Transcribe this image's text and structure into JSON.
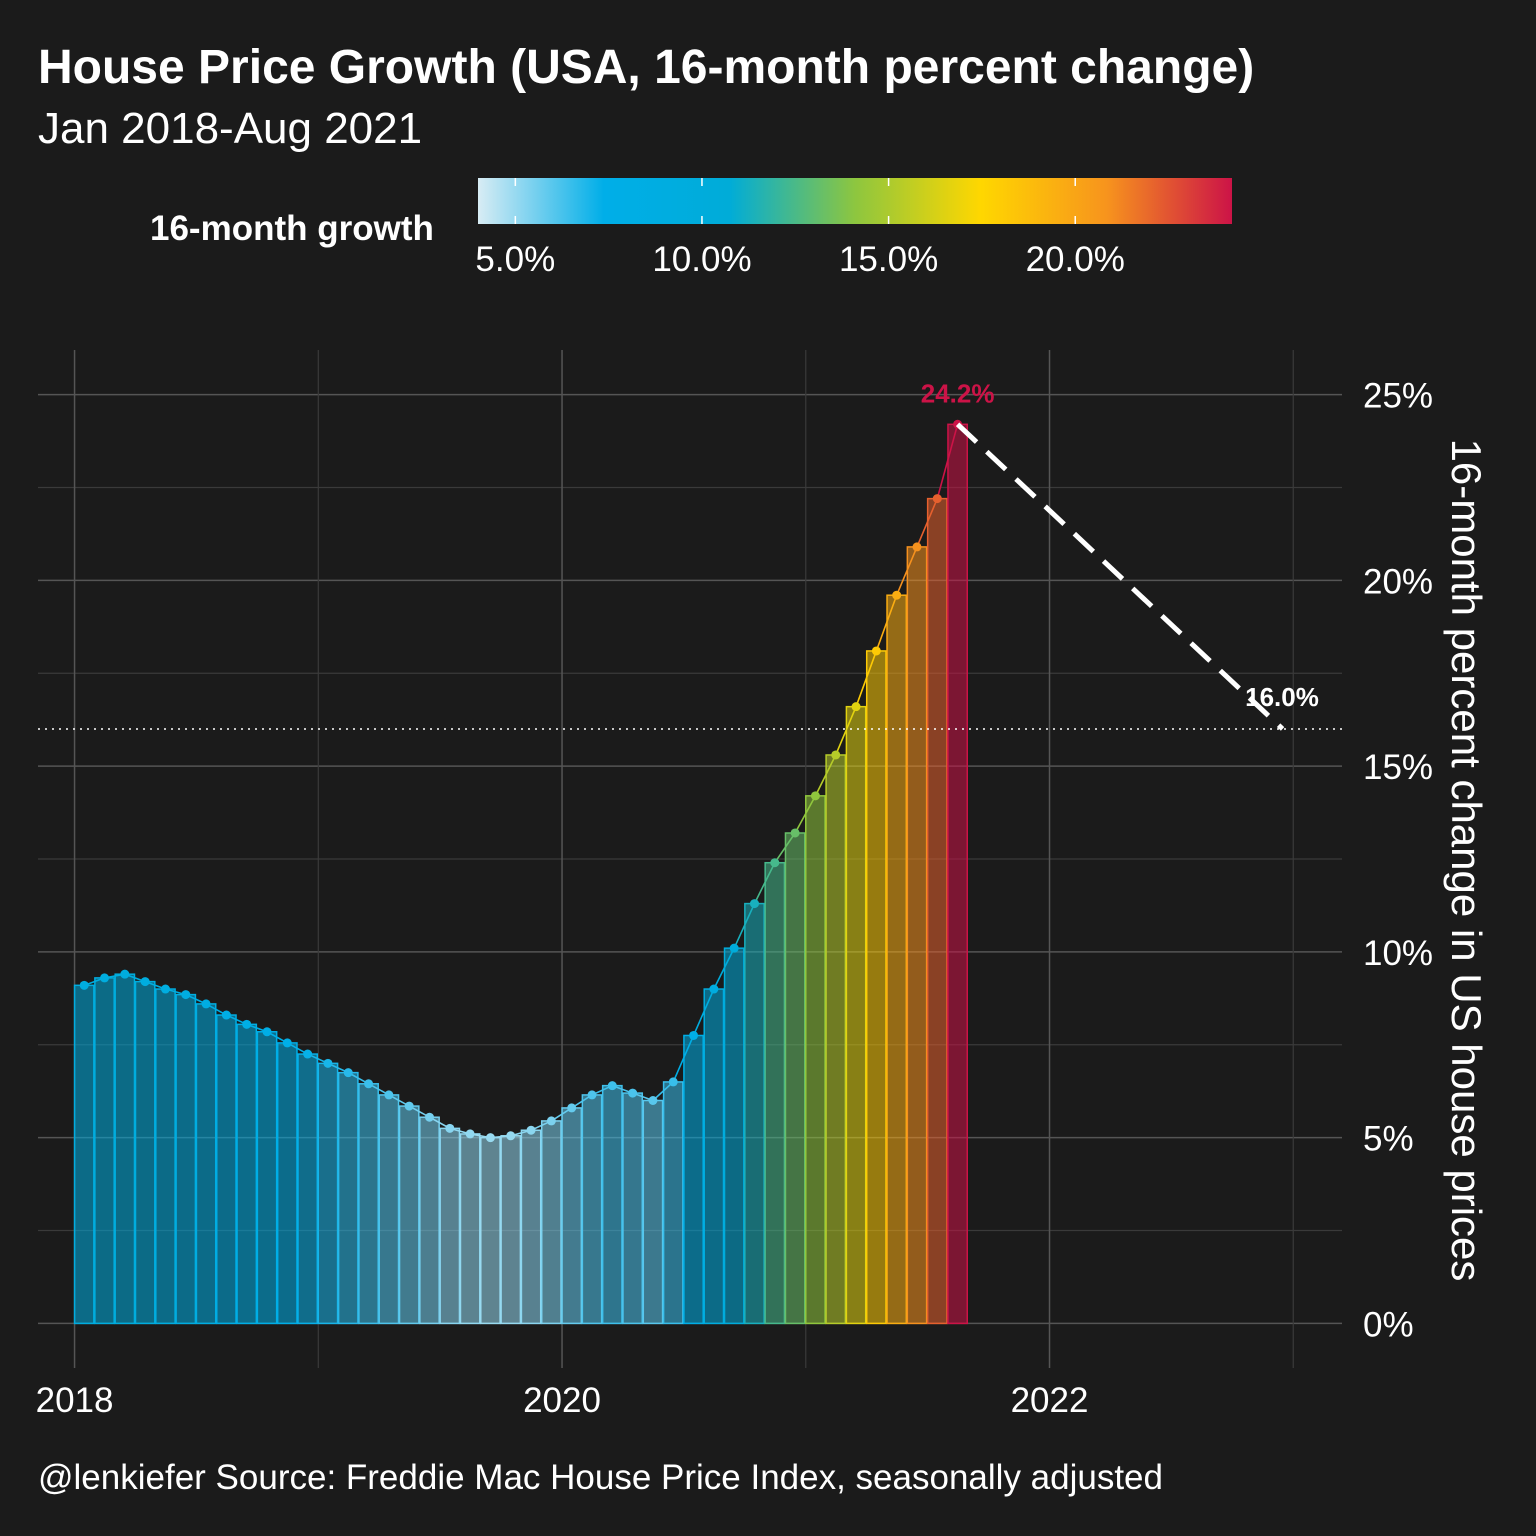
{
  "header": {
    "title": "House Price Growth (USA, 16-month percent change)",
    "subtitle": "Jan 2018-Aug 2021"
  },
  "caption": "@lenkiefer Source: Freddie Mac House Price Index, seasonally adjusted",
  "legend": {
    "title": "16-month growth",
    "position": "top",
    "ticks": [
      "5.0%",
      "10.0%",
      "15.0%",
      "20.0%"
    ],
    "tick_values": [
      5,
      10,
      15,
      20
    ],
    "range": [
      4,
      24.2
    ],
    "gradient_colors": [
      "#d8ecf4",
      "#00aee8",
      "#00acd8",
      "#8dc63f",
      "#ffd700",
      "#f7941d",
      "#cc1347"
    ]
  },
  "chart_data": {
    "type": "bar",
    "title": "House Price Growth (USA, 16-month percent change)",
    "subtitle": "Jan 2018-Aug 2021",
    "ylabel": "16-month percent change in US house prices",
    "xlabel": "",
    "x_start": "2018-01",
    "x_end": "2021-08",
    "x_ticks": [
      "2018",
      "2020",
      "2022"
    ],
    "y_ticks": [
      "0%",
      "5%",
      "10%",
      "15%",
      "20%",
      "25%"
    ],
    "ylim": [
      -1.2,
      26.2
    ],
    "xlim": [
      2017.85,
      2023.2
    ],
    "grid": true,
    "values": [
      9.1,
      9.3,
      9.4,
      9.2,
      9.0,
      8.85,
      8.6,
      8.3,
      8.05,
      7.85,
      7.55,
      7.25,
      7.0,
      6.75,
      6.45,
      6.15,
      5.85,
      5.55,
      5.25,
      5.1,
      5.0,
      5.05,
      5.2,
      5.45,
      5.8,
      6.15,
      6.4,
      6.2,
      6.0,
      6.5,
      7.75,
      9.0,
      10.1,
      11.3,
      12.4,
      13.2,
      14.2,
      15.3,
      16.6,
      18.1,
      19.6,
      20.9,
      22.2,
      24.2
    ],
    "reference_line": {
      "value": 16.0,
      "style": "dotted"
    },
    "annotations": [
      {
        "text": "24.2%",
        "x": "2021-08",
        "y": 24.2,
        "color": "#cc1347"
      },
      {
        "text": "16.0%",
        "x": "2022-12",
        "y": 16.0,
        "color": "#ffffff"
      }
    ],
    "projection": {
      "from": {
        "x": "2021-08",
        "y": 24.2
      },
      "to": {
        "x": "2022-12",
        "y": 16.0
      },
      "style": "dashed"
    }
  }
}
